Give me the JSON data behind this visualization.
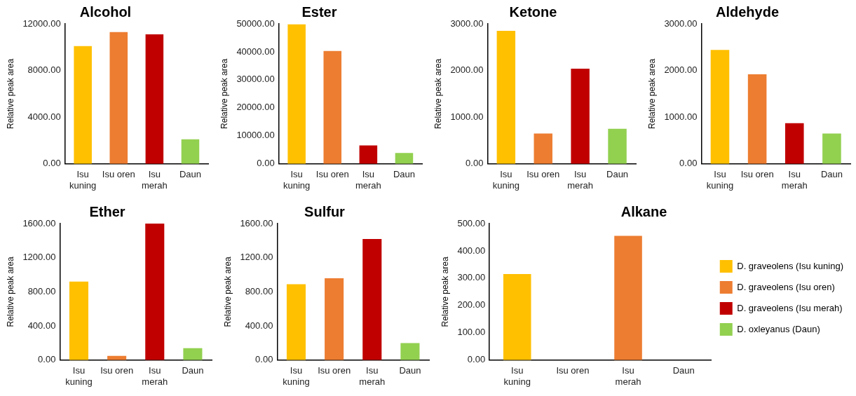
{
  "chart_data": [
    {
      "type": "bar",
      "title": "Alcohol",
      "ylabel": "Relative peak area",
      "categories": [
        "Isu kuning",
        "Isu oren",
        "Isu merah",
        "Daun"
      ],
      "values": [
        10100,
        11300,
        11100,
        2100
      ],
      "colors": [
        "#ffc000",
        "#ed7d31",
        "#c00000",
        "#92d050"
      ],
      "ylim": [
        0,
        12000
      ],
      "yticks": [
        {
          "value": 0,
          "label": "0.00"
        },
        {
          "value": 4000,
          "label": "4000.00"
        },
        {
          "value": 8000,
          "label": "8000.00"
        },
        {
          "value": 12000,
          "label": "12000.00"
        }
      ],
      "grid": false,
      "legend": false
    },
    {
      "type": "bar",
      "title": "Ester",
      "ylabel": "Relative peak area",
      "categories": [
        "Isu kuning",
        "Isu oren",
        "Isu merah",
        "Daun"
      ],
      "values": [
        49800,
        40300,
        6600,
        3900
      ],
      "colors": [
        "#ffc000",
        "#ed7d31",
        "#c00000",
        "#92d050"
      ],
      "ylim": [
        0,
        50000
      ],
      "yticks": [
        {
          "value": 0,
          "label": "0.00"
        },
        {
          "value": 10000,
          "label": "10000.00"
        },
        {
          "value": 20000,
          "label": "20000.00"
        },
        {
          "value": 30000,
          "label": "30000.00"
        },
        {
          "value": 40000,
          "label": "40000.00"
        },
        {
          "value": 50000,
          "label": "50000.00"
        }
      ],
      "grid": false,
      "legend": false
    },
    {
      "type": "bar",
      "title": "Ketone",
      "ylabel": "Relative peak area",
      "categories": [
        "Isu kuning",
        "Isu oren",
        "Isu merah",
        "Daun"
      ],
      "values": [
        2850,
        650,
        2040,
        750
      ],
      "colors": [
        "#ffc000",
        "#ed7d31",
        "#c00000",
        "#92d050"
      ],
      "ylim": [
        0,
        3000
      ],
      "yticks": [
        {
          "value": 0,
          "label": "0.00"
        },
        {
          "value": 1000,
          "label": "1000.00"
        },
        {
          "value": 2000,
          "label": "2000.00"
        },
        {
          "value": 3000,
          "label": "3000.00"
        }
      ],
      "grid": false,
      "legend": false
    },
    {
      "type": "bar",
      "title": "Aldehyde",
      "ylabel": "Relative peak area",
      "categories": [
        "Isu kuning",
        "Isu oren",
        "Isu merah",
        "Daun"
      ],
      "values": [
        2440,
        1920,
        870,
        650
      ],
      "colors": [
        "#ffc000",
        "#ed7d31",
        "#c00000",
        "#92d050"
      ],
      "ylim": [
        0,
        3000
      ],
      "yticks": [
        {
          "value": 0,
          "label": "0.00"
        },
        {
          "value": 1000,
          "label": "1000.00"
        },
        {
          "value": 2000,
          "label": "2000.00"
        },
        {
          "value": 3000,
          "label": "3000.00"
        }
      ],
      "grid": false,
      "legend": false
    },
    {
      "type": "bar",
      "title": "Ether",
      "ylabel": "Relative peak area",
      "categories": [
        "Isu kuning",
        "Isu oren",
        "Isu merah",
        "Daun"
      ],
      "values": [
        920,
        50,
        1600,
        140
      ],
      "colors": [
        "#ffc000",
        "#ed7d31",
        "#c00000",
        "#92d050"
      ],
      "ylim": [
        0,
        1600
      ],
      "yticks": [
        {
          "value": 0,
          "label": "0.00"
        },
        {
          "value": 400,
          "label": "400.00"
        },
        {
          "value": 800,
          "label": "800.00"
        },
        {
          "value": 1200,
          "label": "1200.00"
        },
        {
          "value": 1600,
          "label": "1600.00"
        }
      ],
      "grid": false,
      "legend": false
    },
    {
      "type": "bar",
      "title": "Sulfur",
      "ylabel": "Relative peak area",
      "categories": [
        "Isu kuning",
        "Isu oren",
        "Isu merah",
        "Daun"
      ],
      "values": [
        890,
        960,
        1420,
        200
      ],
      "colors": [
        "#ffc000",
        "#ed7d31",
        "#c00000",
        "#92d050"
      ],
      "ylim": [
        0,
        1600
      ],
      "yticks": [
        {
          "value": 0,
          "label": "0.00"
        },
        {
          "value": 400,
          "label": "400.00"
        },
        {
          "value": 800,
          "label": "800.00"
        },
        {
          "value": 1200,
          "label": "1200.00"
        },
        {
          "value": 1600,
          "label": "1600.00"
        }
      ],
      "grid": false,
      "legend": false
    },
    {
      "type": "bar",
      "title": "Alkane",
      "ylabel": "Relative peak area",
      "categories": [
        "Isu kuning",
        "Isu oren",
        "Isu merah",
        "Daun"
      ],
      "stacked": true,
      "series": [
        {
          "name": "D. graveolens (Isu kuning)",
          "color": "#ffc000",
          "values": [
            315,
            null,
            null,
            null
          ]
        },
        {
          "name": "D. graveolens (Isu oren)",
          "color": "#ed7d31",
          "values": [
            null,
            0,
            455,
            null
          ]
        },
        {
          "name": "D. graveolens (Isu merah)",
          "color": "#c00000",
          "values": [
            null,
            null,
            null,
            null
          ]
        },
        {
          "name": "D. oxleyanus (Daun)",
          "color": "#92d050",
          "values": [
            null,
            null,
            null,
            0
          ]
        }
      ],
      "ylim": [
        0,
        500
      ],
      "yticks": [
        {
          "value": 0,
          "label": "0.00"
        },
        {
          "value": 100,
          "label": "100.00"
        },
        {
          "value": 200,
          "label": "200.00"
        },
        {
          "value": 300,
          "label": "300.00"
        },
        {
          "value": 400,
          "label": "400.00"
        },
        {
          "value": 500,
          "label": "500.00"
        }
      ],
      "grid": false,
      "legend": "right"
    }
  ]
}
